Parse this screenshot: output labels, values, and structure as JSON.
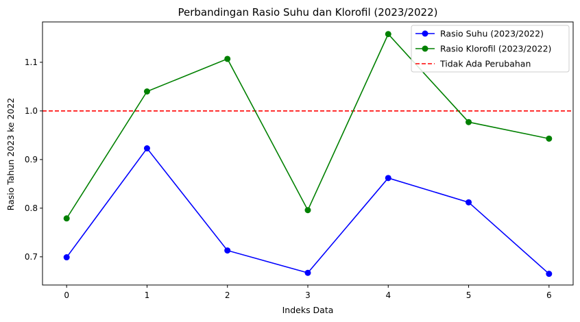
{
  "chart_data": {
    "type": "line",
    "title": "Perbandingan Rasio Suhu dan Klorofil (2023/2022)",
    "xlabel": "Indeks Data",
    "ylabel": "Rasio Tahun 2023 ke 2022",
    "x": [
      0,
      1,
      2,
      3,
      4,
      5,
      6
    ],
    "xlim": [
      -0.3,
      6.3
    ],
    "ylim": [
      0.642,
      1.183
    ],
    "xticks": [
      0,
      1,
      2,
      3,
      4,
      5,
      6
    ],
    "yticks": [
      0.7,
      0.8,
      0.9,
      1.0,
      1.1
    ],
    "ytick_labels": [
      "0.7",
      "0.8",
      "0.9",
      "1.0",
      "1.1"
    ],
    "grid": false,
    "legend_position": "top-right",
    "series": [
      {
        "name": "Rasio Suhu (2023/2022)",
        "color": "#0000ff",
        "marker": "circle",
        "values": [
          0.699,
          0.923,
          0.713,
          0.667,
          0.862,
          0.812,
          0.665
        ]
      },
      {
        "name": "Rasio Klorofil (2023/2022)",
        "color": "#008000",
        "marker": "circle",
        "values": [
          0.779,
          1.04,
          1.107,
          0.796,
          1.158,
          0.977,
          0.943
        ]
      }
    ],
    "reference_lines": [
      {
        "name": "Tidak Ada Perubahan",
        "y": 1.0,
        "color": "#ff0000",
        "style": "dashed"
      }
    ]
  }
}
